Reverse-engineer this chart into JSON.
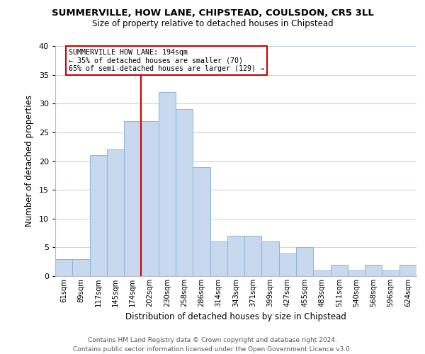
{
  "title": "SUMMERVILLE, HOW LANE, CHIPSTEAD, COULSDON, CR5 3LL",
  "subtitle": "Size of property relative to detached houses in Chipstead",
  "xlabel": "Distribution of detached houses by size in Chipstead",
  "ylabel": "Number of detached properties",
  "bar_labels": [
    "61sqm",
    "89sqm",
    "117sqm",
    "145sqm",
    "174sqm",
    "202sqm",
    "230sqm",
    "258sqm",
    "286sqm",
    "314sqm",
    "343sqm",
    "371sqm",
    "399sqm",
    "427sqm",
    "455sqm",
    "483sqm",
    "511sqm",
    "540sqm",
    "568sqm",
    "596sqm",
    "624sqm"
  ],
  "bar_values": [
    3,
    3,
    21,
    22,
    27,
    27,
    32,
    29,
    19,
    6,
    7,
    7,
    6,
    4,
    5,
    1,
    2,
    1,
    2,
    1,
    2
  ],
  "bar_color": "#c8d9ef",
  "bar_edge_color": "#8ab4d8",
  "property_line_index": 5,
  "annotation_title": "SUMMERVILLE HOW LANE: 194sqm",
  "annotation_line1": "← 35% of detached houses are smaller (70)",
  "annotation_line2": "65% of semi-detached houses are larger (129) →",
  "vline_color": "#cc0000",
  "ylim": [
    0,
    40
  ],
  "yticks": [
    0,
    5,
    10,
    15,
    20,
    25,
    30,
    35,
    40
  ],
  "footer_line1": "Contains HM Land Registry data © Crown copyright and database right 2024.",
  "footer_line2": "Contains public sector information licensed under the Open Government Licence v3.0.",
  "bg_color": "#ffffff",
  "grid_color": "#ccd6e8"
}
